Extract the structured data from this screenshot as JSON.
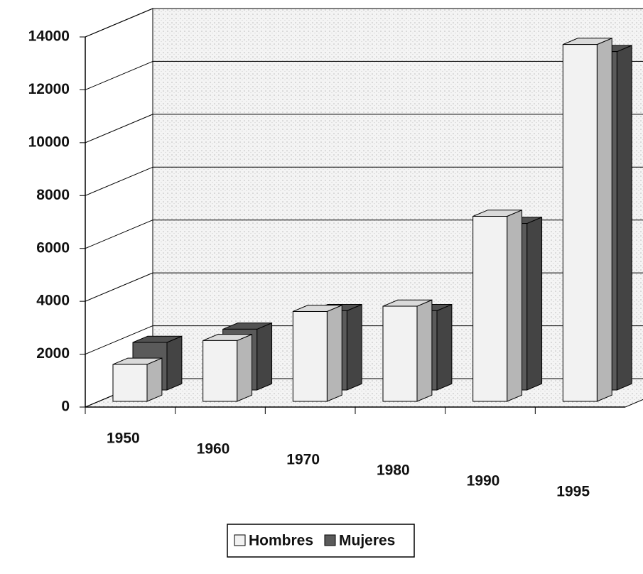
{
  "chart_data": {
    "type": "bar3d",
    "categories": [
      "1950",
      "1960",
      "1970",
      "1980",
      "1990",
      "1995"
    ],
    "series": [
      {
        "name": "Hombres",
        "color": "#f2f2f2",
        "values": [
          1400,
          2300,
          3400,
          3600,
          7000,
          13500
        ]
      },
      {
        "name": "Mujeres",
        "color": "#5a5a5a",
        "values": [
          1800,
          2300,
          3000,
          3000,
          6300,
          12800
        ]
      }
    ],
    "ylim": [
      0,
      14000
    ],
    "yticks": [
      0,
      2000,
      4000,
      6000,
      8000,
      10000,
      12000,
      14000
    ],
    "grid": true,
    "legend": "bottom"
  }
}
